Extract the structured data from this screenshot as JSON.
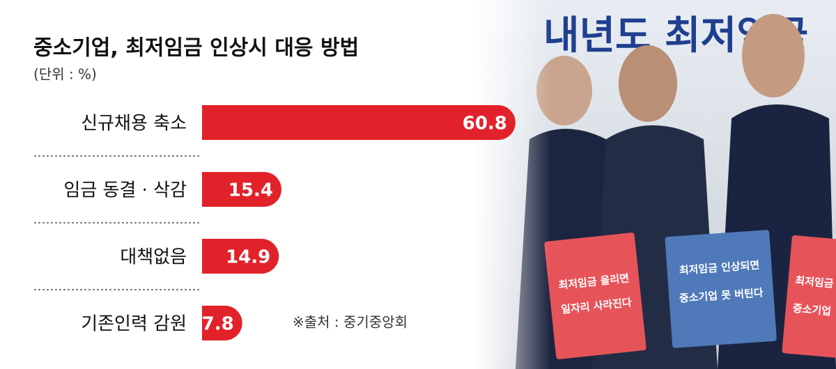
{
  "chart_data": {
    "type": "bar",
    "orientation": "horizontal",
    "title": "중소기업, 최저임금 인상시 대응 방법",
    "subtitle": "(단위 : %)",
    "categories": [
      "신규채용 축소",
      "임금 동결 · 삭감",
      "대책없음",
      "기존인력 감원"
    ],
    "values": [
      60.8,
      15.4,
      14.9,
      7.8
    ],
    "color": "#e2222b",
    "source": "※출처 : 중기중앙회"
  },
  "photo": {
    "banner": "내년도 최저임금",
    "signs": [
      [
        "최저임금 올리면",
        "일자리 사라진다"
      ],
      [
        "최저임금 인상되면",
        "중소기업 못 버틴다"
      ],
      [
        "최저임금",
        "중소기업"
      ]
    ]
  }
}
